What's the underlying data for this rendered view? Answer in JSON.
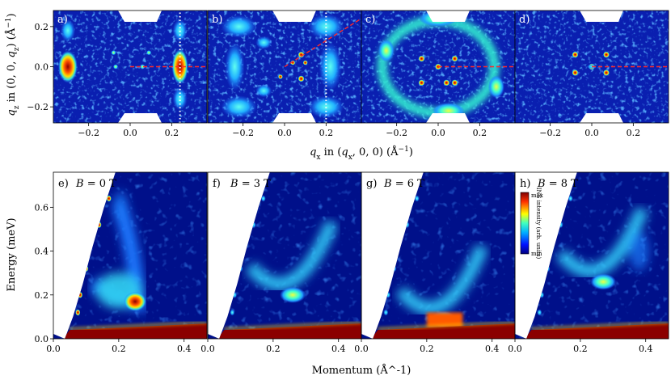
{
  "chart_data": [
    {
      "type": "heatmap",
      "panel": "a)",
      "xlabel": "q_x in (q_x, 0, 0) (Å^-1)",
      "ylabel": "q_z in (0, 0, q_z) (Å^-1)",
      "xticks": [
        -0.2,
        0.0,
        0.2
      ],
      "yticks": [
        -0.2,
        0.0,
        0.2
      ],
      "xlim": [
        -0.37,
        0.37
      ],
      "ylim": [
        -0.28,
        0.28
      ],
      "cut_lines": [
        {
          "style": "dotted-white",
          "x": [
            0.24,
            0.24
          ],
          "y": [
            -0.28,
            0.28
          ]
        },
        {
          "style": "dashed-red",
          "x": [
            0.0,
            0.37
          ],
          "y": [
            0.0,
            0.0
          ]
        }
      ]
    },
    {
      "type": "heatmap",
      "panel": "b)",
      "xticks": [
        -0.2,
        0.0,
        0.2
      ],
      "xlim": [
        -0.37,
        0.37
      ],
      "ylim": [
        -0.28,
        0.28
      ],
      "cut_lines": [
        {
          "style": "dotted-white",
          "x": [
            0.2,
            0.2
          ],
          "y": [
            -0.28,
            0.28
          ]
        },
        {
          "style": "dashed-red",
          "x": [
            0.0,
            0.37
          ],
          "y": [
            0.0,
            0.24
          ]
        }
      ]
    },
    {
      "type": "heatmap",
      "panel": "c)",
      "xticks": [
        -0.2,
        0.0,
        0.2
      ],
      "xlim": [
        -0.37,
        0.37
      ],
      "ylim": [
        -0.28,
        0.28
      ],
      "cut_lines": [
        {
          "style": "dashed-red",
          "x": [
            0.0,
            0.37
          ],
          "y": [
            0.0,
            0.0
          ]
        }
      ]
    },
    {
      "type": "heatmap",
      "panel": "d)",
      "xticks": [
        -0.2,
        0.0,
        0.2
      ],
      "xlim": [
        -0.37,
        0.37
      ],
      "ylim": [
        -0.28,
        0.28
      ],
      "cut_lines": [
        {
          "style": "dashed-red",
          "x": [
            0.0,
            0.37
          ],
          "y": [
            0.0,
            0.0
          ]
        }
      ]
    },
    {
      "type": "heatmap",
      "panel": "e)",
      "field": "B = 0 T",
      "xlabel": "Momentum (Å^-1)",
      "ylabel": "Energy (meV)",
      "xticks": [
        0.0,
        0.2,
        0.4
      ],
      "yticks": [
        0.0,
        0.2,
        0.4,
        0.6
      ],
      "xlim": [
        0.0,
        0.47
      ],
      "ylim": [
        0.0,
        0.76
      ],
      "features": [
        {
          "kind": "elastic-line",
          "energy_max": 0.05
        },
        {
          "kind": "hot-spot",
          "q": 0.26,
          "E": 0.16
        },
        {
          "kind": "branch",
          "q_min": 0.15,
          "q_max": 0.27,
          "E_min": 0.16,
          "E_max": 0.65
        }
      ]
    },
    {
      "type": "heatmap",
      "panel": "f)",
      "field": "B = 3 T",
      "xticks": [
        0.0,
        0.2,
        0.4
      ],
      "xlim": [
        0.0,
        0.47
      ],
      "ylim": [
        0.0,
        0.76
      ],
      "features": [
        {
          "kind": "elastic-line",
          "energy_max": 0.05
        },
        {
          "kind": "band-minimum",
          "q": 0.26,
          "E": 0.18
        }
      ]
    },
    {
      "type": "heatmap",
      "panel": "g)",
      "field": "B = 6 T",
      "xticks": [
        0.0,
        0.2,
        0.4
      ],
      "xlim": [
        0.0,
        0.47
      ],
      "ylim": [
        0.0,
        0.76
      ],
      "features": [
        {
          "kind": "elastic-line",
          "energy_max": 0.05
        },
        {
          "kind": "band-minimum",
          "q": 0.25,
          "E": 0.07
        }
      ]
    },
    {
      "type": "heatmap",
      "panel": "h)",
      "field": "B = 8 T",
      "xticks": [
        0.0,
        0.2,
        0.4
      ],
      "xlim": [
        0.0,
        0.47
      ],
      "ylim": [
        0.0,
        0.76
      ],
      "features": [
        {
          "kind": "elastic-line",
          "energy_max": 0.05
        },
        {
          "kind": "band-minimum",
          "q": 0.27,
          "E": 0.24
        }
      ]
    }
  ],
  "labels": {
    "panels_top": [
      "a)",
      "b)",
      "c)",
      "d)"
    ],
    "panels_bottom": [
      "e)",
      "f)",
      "g)",
      "h)"
    ],
    "field_prefix": "B = ",
    "fields": [
      "0 T",
      "3 T",
      "6 T",
      "8 T"
    ],
    "top_xlabel": "q_x in (q_x, 0, 0) (Å^-1)",
    "top_ylabel": "q_z in (0, 0, q_z) (Å^-1)",
    "bottom_xlabel": "Momentum (Å^-1)",
    "bottom_ylabel": "Energy (meV)",
    "colorbar_label": "INS intensity (arb. units)",
    "colorbar_max": "max",
    "colorbar_min": "min"
  },
  "colors": {
    "background_low": "#00108a",
    "mid": "#1e6cff",
    "cyan": "#36e0e8",
    "yellow": "#f5e020",
    "orange": "#ff6a00",
    "high": "#8b0000",
    "dashed_line": "#ff2a2a",
    "dotted_line": "#ffffff"
  }
}
